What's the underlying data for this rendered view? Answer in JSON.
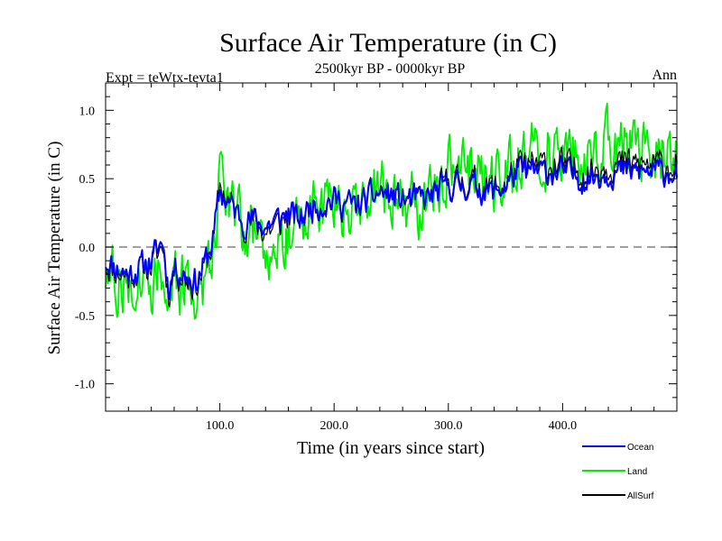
{
  "colors": {
    "ocean": "#0000ff",
    "land": "#00ee00",
    "allsurf": "#000000",
    "zero_line": "#808080"
  },
  "chart_data": {
    "type": "line",
    "title": "Surface Air Temperature (in C)",
    "subtitle": "2500kyr BP - 0000kyr BP",
    "expt_label": "Expt = teWtx-tevta1",
    "season_label": "Ann",
    "xlabel": "Time (in years since start)",
    "ylabel": "Surface Air Temperature (in C)",
    "xlim": [
      0,
      500
    ],
    "ylim": [
      -1.2,
      1.2
    ],
    "x_ticks": [
      100,
      200,
      300,
      400
    ],
    "x_tick_labels": [
      "100.0",
      "200.0",
      "300.0",
      "400.0"
    ],
    "y_ticks": [
      -1.0,
      -0.5,
      0.0,
      0.5,
      1.0
    ],
    "y_tick_labels": [
      "-1.0",
      "-0.5",
      "0.0",
      "0.5",
      "1.0"
    ],
    "reference_line": 0.0,
    "anchor_x": [
      0,
      10,
      20,
      30,
      40,
      50,
      55,
      60,
      70,
      80,
      90,
      95,
      100,
      105,
      110,
      120,
      130,
      140,
      150,
      160,
      170,
      180,
      200,
      220,
      240,
      260,
      280,
      300,
      320,
      340,
      350,
      360,
      380,
      400,
      420,
      440,
      460,
      480,
      500
    ],
    "series": [
      {
        "name": "Ocean",
        "values": [
          -0.1,
          -0.15,
          -0.2,
          -0.15,
          -0.1,
          0.05,
          -0.3,
          -0.15,
          -0.2,
          -0.25,
          -0.05,
          0.1,
          0.4,
          0.35,
          0.3,
          0.2,
          0.2,
          0.15,
          0.2,
          0.25,
          0.2,
          0.3,
          0.35,
          0.3,
          0.4,
          0.35,
          0.35,
          0.45,
          0.45,
          0.4,
          0.45,
          0.55,
          0.55,
          0.55,
          0.5,
          0.55,
          0.55,
          0.55,
          0.55
        ],
        "noise": 0.09,
        "seed": 11
      },
      {
        "name": "Land",
        "values": [
          -0.2,
          -0.25,
          -0.3,
          -0.2,
          -0.25,
          -0.1,
          -0.5,
          -0.25,
          -0.3,
          -0.35,
          -0.15,
          0.05,
          0.6,
          0.45,
          0.35,
          0.15,
          0.1,
          0.0,
          0.05,
          0.15,
          0.15,
          0.3,
          0.3,
          0.25,
          0.45,
          0.3,
          0.3,
          0.55,
          0.55,
          0.5,
          0.5,
          0.65,
          0.7,
          0.7,
          0.65,
          0.75,
          0.75,
          0.7,
          0.7
        ],
        "noise": 0.2,
        "seed": 27
      },
      {
        "name": "AllSurf",
        "values": [
          -0.12,
          -0.18,
          -0.22,
          -0.16,
          -0.14,
          0.02,
          -0.35,
          -0.17,
          -0.23,
          -0.28,
          -0.08,
          0.08,
          0.45,
          0.38,
          0.31,
          0.19,
          0.17,
          0.11,
          0.16,
          0.22,
          0.19,
          0.3,
          0.34,
          0.29,
          0.41,
          0.34,
          0.34,
          0.48,
          0.48,
          0.43,
          0.47,
          0.58,
          0.6,
          0.6,
          0.55,
          0.61,
          0.61,
          0.6,
          0.6
        ],
        "noise": 0.1,
        "seed": 11
      }
    ],
    "legend": [
      "Ocean",
      "Land",
      "AllSurf"
    ],
    "legend_position": "bottom-right"
  }
}
